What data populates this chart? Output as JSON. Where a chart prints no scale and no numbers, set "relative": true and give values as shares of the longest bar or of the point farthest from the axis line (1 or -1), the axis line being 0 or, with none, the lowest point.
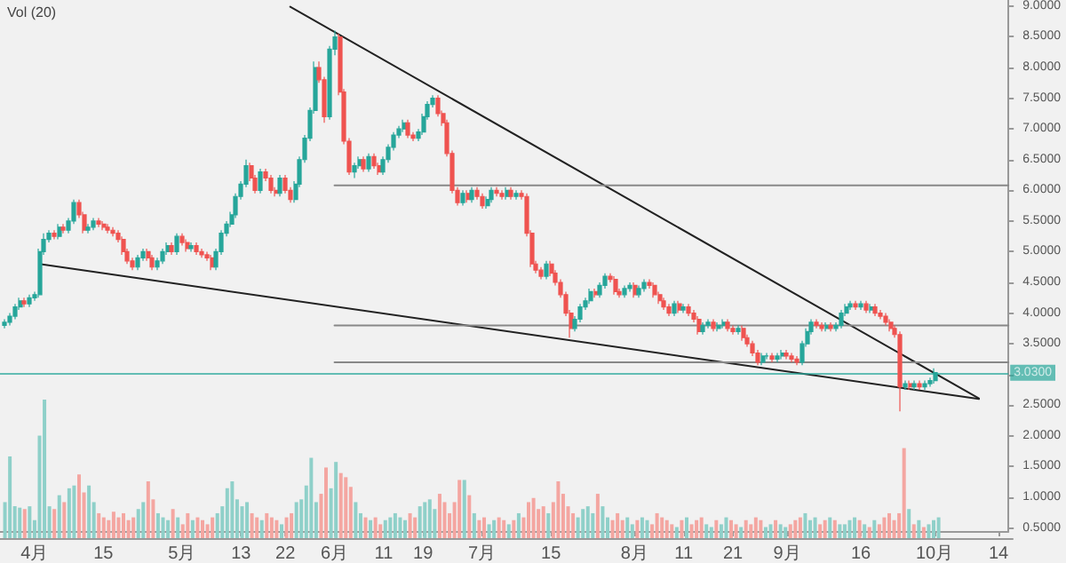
{
  "chart_data": [
    {
      "type": "candlestick",
      "annotations": [
        "Vol (20)"
      ],
      "xlim": [
        "--03-25",
        "--10-16"
      ],
      "ylim": [
        0.45,
        9.1
      ],
      "xticks": [
        {
          "value": "--04-01",
          "label": "4月"
        },
        {
          "value": "--04-15",
          "label": "15"
        },
        {
          "value": "--05-01",
          "label": "5月"
        },
        {
          "value": "--05-13",
          "label": "13"
        },
        {
          "value": "--05-22",
          "label": "22"
        },
        {
          "value": "--06-01",
          "label": "6月"
        },
        {
          "value": "--06-11",
          "label": "11"
        },
        {
          "value": "--06-19",
          "label": "19"
        },
        {
          "value": "--07-01",
          "label": "7月"
        },
        {
          "value": "--07-15",
          "label": "15"
        },
        {
          "value": "--08-01",
          "label": "8月"
        },
        {
          "value": "--08-11",
          "label": "11"
        },
        {
          "value": "--08-21",
          "label": "21"
        },
        {
          "value": "--09-01",
          "label": "9月"
        },
        {
          "value": "--09-16",
          "label": "16"
        },
        {
          "value": "--10-01",
          "label": "10月"
        },
        {
          "value": "--10-14",
          "label": "14"
        }
      ],
      "yticks": [
        {
          "value": 0.5,
          "label": "0.5000"
        },
        {
          "value": 1,
          "label": "1.0000"
        },
        {
          "value": 1.5,
          "label": "1.5000"
        },
        {
          "value": 2,
          "label": "2.0000"
        },
        {
          "value": 2.5,
          "label": "2.5000"
        },
        {
          "value": 3,
          "label": null
        },
        {
          "value": 3.5,
          "label": "3.5000"
        },
        {
          "value": 4,
          "label": "4.0000"
        },
        {
          "value": 4.5,
          "label": "4.5000"
        },
        {
          "value": 5,
          "label": "5.0000"
        },
        {
          "value": 5.5,
          "label": "5.5000"
        },
        {
          "value": 6,
          "label": "6.0000"
        },
        {
          "value": 6.5,
          "label": "6.5000"
        },
        {
          "value": 7,
          "label": "7.0000"
        },
        {
          "value": 7.5,
          "label": "7.5000"
        },
        {
          "value": 8,
          "label": "8.0000"
        },
        {
          "value": 8.5,
          "label": "8.5000"
        },
        {
          "value": 9,
          "label": "9.0000"
        }
      ],
      "ref_lines": [
        {
          "axis": "y",
          "value": 3.03,
          "label": "3.0300",
          "color": "#26a69a"
        }
      ],
      "x": [
        "--03-26",
        "--03-27",
        "--03-28",
        "--03-29",
        "--03-30",
        "--03-31",
        "--04-01",
        "--04-02",
        "--04-03",
        "--04-04",
        "--04-05",
        "--04-06",
        "--04-07",
        "--04-08",
        "--04-09",
        "--04-10",
        "--04-11",
        "--04-12",
        "--04-13",
        "--04-14",
        "--04-15",
        "--04-16",
        "--04-17",
        "--04-18",
        "--04-19",
        "--04-20",
        "--04-21",
        "--04-22",
        "--04-23",
        "--04-24",
        "--04-25",
        "--04-26",
        "--04-27",
        "--04-28",
        "--04-29",
        "--04-30",
        "--05-01",
        "--05-02",
        "--05-03",
        "--05-04",
        "--05-05",
        "--05-06",
        "--05-07",
        "--05-08",
        "--05-09",
        "--05-10",
        "--05-11",
        "--05-12",
        "--05-13",
        "--05-14",
        "--05-15",
        "--05-16",
        "--05-17",
        "--05-18",
        "--05-19",
        "--05-20",
        "--05-21",
        "--05-22",
        "--05-23",
        "--05-24",
        "--05-25",
        "--05-26",
        "--05-27",
        "--05-28",
        "--05-29",
        "--05-30",
        "--05-31",
        "--06-01",
        "--06-02",
        "--06-03",
        "--06-04",
        "--06-05",
        "--06-06",
        "--06-07",
        "--06-08",
        "--06-09",
        "--06-10",
        "--06-11",
        "--06-12",
        "--06-13",
        "--06-14",
        "--06-15",
        "--06-16",
        "--06-17",
        "--06-18",
        "--06-19",
        "--06-20",
        "--06-21",
        "--06-22",
        "--06-23",
        "--06-24",
        "--06-25",
        "--06-26",
        "--06-27",
        "--06-28",
        "--06-29",
        "--06-30",
        "--07-01",
        "--07-02",
        "--07-03",
        "--07-04",
        "--07-05",
        "--07-06",
        "--07-07",
        "--07-08",
        "--07-09",
        "--07-10",
        "--07-11",
        "--07-12",
        "--07-13",
        "--07-14",
        "--07-15",
        "--07-16",
        "--07-17",
        "--07-18",
        "--07-19",
        "--07-20",
        "--07-21",
        "--07-22",
        "--07-23",
        "--07-24",
        "--07-25",
        "--07-26",
        "--07-27",
        "--07-28",
        "--07-29",
        "--07-30",
        "--07-31",
        "--08-01",
        "--08-02",
        "--08-03",
        "--08-04",
        "--08-05",
        "--08-06",
        "--08-07",
        "--08-08",
        "--08-09",
        "--08-10",
        "--08-11",
        "--08-12",
        "--08-13",
        "--08-14",
        "--08-15",
        "--08-16",
        "--08-17",
        "--08-18",
        "--08-19",
        "--08-20",
        "--08-21",
        "--08-22",
        "--08-23",
        "--08-24",
        "--08-25",
        "--08-26",
        "--08-27",
        "--08-28",
        "--08-29",
        "--08-30",
        "--08-31",
        "--09-01",
        "--09-02",
        "--09-03",
        "--09-04",
        "--09-05",
        "--09-06",
        "--09-07",
        "--09-08",
        "--09-09",
        "--09-10",
        "--09-11",
        "--09-12",
        "--09-13",
        "--09-14",
        "--09-15",
        "--09-16",
        "--09-17",
        "--09-18",
        "--09-19",
        "--09-20",
        "--09-21",
        "--09-22",
        "--09-23",
        "--09-24",
        "--09-25",
        "--09-26",
        "--09-27",
        "--09-28",
        "--09-29",
        "--09-30",
        "--10-01"
      ],
      "ohlc": [
        [
          3.8,
          3.9,
          3.75,
          3.85
        ],
        [
          3.85,
          4.0,
          3.8,
          3.95
        ],
        [
          3.95,
          4.15,
          3.9,
          4.1
        ],
        [
          4.1,
          4.25,
          4.05,
          4.2
        ],
        [
          4.2,
          4.25,
          4.1,
          4.15
        ],
        [
          4.15,
          4.3,
          4.1,
          4.25
        ],
        [
          4.25,
          4.35,
          4.2,
          4.3
        ],
        [
          4.3,
          5.05,
          4.25,
          5.0
        ],
        [
          5.0,
          5.3,
          4.95,
          5.2
        ],
        [
          5.2,
          5.35,
          5.15,
          5.3
        ],
        [
          5.3,
          5.35,
          5.2,
          5.25
        ],
        [
          5.25,
          5.45,
          5.2,
          5.4
        ],
        [
          5.4,
          5.45,
          5.3,
          5.35
        ],
        [
          5.35,
          5.55,
          5.3,
          5.5
        ],
        [
          5.5,
          5.85,
          5.45,
          5.8
        ],
        [
          5.8,
          5.85,
          5.55,
          5.6
        ],
        [
          5.6,
          5.65,
          5.3,
          5.35
        ],
        [
          5.35,
          5.45,
          5.3,
          5.4
        ],
        [
          5.4,
          5.55,
          5.35,
          5.5
        ],
        [
          5.5,
          5.55,
          5.4,
          5.45
        ],
        [
          5.45,
          5.5,
          5.35,
          5.4
        ],
        [
          5.4,
          5.45,
          5.3,
          5.35
        ],
        [
          5.35,
          5.4,
          5.25,
          5.3
        ],
        [
          5.3,
          5.35,
          5.15,
          5.2
        ],
        [
          5.2,
          5.25,
          4.95,
          5.0
        ],
        [
          5.0,
          5.05,
          4.8,
          4.85
        ],
        [
          4.85,
          4.9,
          4.7,
          4.75
        ],
        [
          4.75,
          4.95,
          4.7,
          4.9
        ],
        [
          4.9,
          5.05,
          4.85,
          5.0
        ],
        [
          5.0,
          5.05,
          4.85,
          4.9
        ],
        [
          4.9,
          4.95,
          4.7,
          4.75
        ],
        [
          4.75,
          4.9,
          4.7,
          4.85
        ],
        [
          4.85,
          5.05,
          4.8,
          5.0
        ],
        [
          5.0,
          5.15,
          4.95,
          5.1
        ],
        [
          5.1,
          5.15,
          4.95,
          5.0
        ],
        [
          5.0,
          5.3,
          4.95,
          5.25
        ],
        [
          5.25,
          5.3,
          5.1,
          5.15
        ],
        [
          5.15,
          5.2,
          5.0,
          5.05
        ],
        [
          5.05,
          5.15,
          5.0,
          5.1
        ],
        [
          5.1,
          5.15,
          4.95,
          5.0
        ],
        [
          5.0,
          5.05,
          4.9,
          4.95
        ],
        [
          4.95,
          5.0,
          4.85,
          4.9
        ],
        [
          4.9,
          4.95,
          4.7,
          4.75
        ],
        [
          4.75,
          5.05,
          4.7,
          5.0
        ],
        [
          5.0,
          5.35,
          4.95,
          5.3
        ],
        [
          5.3,
          5.5,
          5.25,
          5.45
        ],
        [
          5.45,
          5.65,
          5.4,
          5.6
        ],
        [
          5.6,
          5.95,
          5.55,
          5.9
        ],
        [
          5.9,
          6.15,
          5.85,
          6.1
        ],
        [
          6.1,
          6.5,
          6.05,
          6.4
        ],
        [
          6.4,
          6.45,
          6.15,
          6.2
        ],
        [
          6.2,
          6.25,
          5.95,
          6.0
        ],
        [
          6.0,
          6.35,
          5.95,
          6.3
        ],
        [
          6.3,
          6.35,
          6.15,
          6.2
        ],
        [
          6.2,
          6.25,
          5.95,
          6.0
        ],
        [
          6.0,
          6.05,
          5.9,
          5.95
        ],
        [
          5.95,
          6.25,
          5.9,
          6.2
        ],
        [
          6.2,
          6.25,
          5.95,
          6.0
        ],
        [
          6.0,
          6.05,
          5.8,
          5.85
        ],
        [
          5.85,
          6.15,
          5.8,
          6.1
        ],
        [
          6.1,
          6.55,
          6.05,
          6.5
        ],
        [
          6.5,
          6.9,
          6.45,
          6.85
        ],
        [
          6.85,
          7.35,
          6.8,
          7.3
        ],
        [
          7.3,
          8.1,
          7.25,
          8.0
        ],
        [
          8.0,
          8.1,
          7.75,
          7.8
        ],
        [
          7.8,
          7.85,
          7.1,
          7.2
        ],
        [
          7.2,
          8.35,
          7.15,
          8.3
        ],
        [
          8.3,
          8.6,
          8.2,
          8.5
        ],
        [
          8.5,
          8.55,
          7.55,
          7.6
        ],
        [
          7.6,
          7.65,
          6.75,
          6.8
        ],
        [
          6.8,
          6.85,
          6.25,
          6.3
        ],
        [
          6.3,
          6.45,
          6.2,
          6.4
        ],
        [
          6.4,
          6.55,
          6.35,
          6.5
        ],
        [
          6.5,
          6.55,
          6.3,
          6.35
        ],
        [
          6.35,
          6.6,
          6.3,
          6.55
        ],
        [
          6.55,
          6.6,
          6.35,
          6.4
        ],
        [
          6.4,
          6.45,
          6.25,
          6.3
        ],
        [
          6.3,
          6.55,
          6.25,
          6.5
        ],
        [
          6.5,
          6.75,
          6.45,
          6.7
        ],
        [
          6.7,
          6.95,
          6.65,
          6.9
        ],
        [
          6.9,
          7.05,
          6.85,
          7.0
        ],
        [
          7.0,
          7.15,
          6.95,
          7.1
        ],
        [
          7.1,
          7.15,
          6.85,
          6.9
        ],
        [
          6.9,
          6.95,
          6.8,
          6.85
        ],
        [
          6.85,
          7.0,
          6.8,
          6.95
        ],
        [
          6.95,
          7.25,
          6.9,
          7.2
        ],
        [
          7.2,
          7.45,
          7.15,
          7.4
        ],
        [
          7.4,
          7.55,
          7.35,
          7.5
        ],
        [
          7.5,
          7.55,
          7.2,
          7.25
        ],
        [
          7.25,
          7.3,
          7.05,
          7.1
        ],
        [
          7.1,
          7.15,
          6.55,
          6.6
        ],
        [
          6.6,
          6.65,
          5.95,
          6.0
        ],
        [
          6.0,
          6.05,
          5.75,
          5.8
        ],
        [
          5.8,
          6.0,
          5.75,
          5.95
        ],
        [
          5.95,
          6.0,
          5.8,
          5.85
        ],
        [
          5.85,
          6.05,
          5.8,
          6.0
        ],
        [
          6.0,
          6.05,
          5.85,
          5.9
        ],
        [
          5.9,
          5.95,
          5.7,
          5.75
        ],
        [
          5.75,
          5.9,
          5.7,
          5.85
        ],
        [
          5.85,
          6.05,
          5.8,
          6.0
        ],
        [
          6.0,
          6.05,
          5.9,
          5.95
        ],
        [
          5.95,
          6.0,
          5.85,
          5.9
        ],
        [
          5.9,
          6.05,
          5.85,
          6.0
        ],
        [
          6.0,
          6.05,
          5.85,
          5.9
        ],
        [
          5.9,
          6.0,
          5.85,
          5.95
        ],
        [
          5.95,
          6.0,
          5.85,
          5.9
        ],
        [
          5.9,
          5.95,
          5.25,
          5.3
        ],
        [
          5.3,
          5.35,
          4.75,
          4.8
        ],
        [
          4.8,
          4.85,
          4.65,
          4.7
        ],
        [
          4.7,
          4.75,
          4.55,
          4.6
        ],
        [
          4.6,
          4.85,
          4.55,
          4.8
        ],
        [
          4.8,
          4.85,
          4.6,
          4.65
        ],
        [
          4.65,
          4.7,
          4.45,
          4.5
        ],
        [
          4.5,
          4.55,
          4.25,
          4.3
        ],
        [
          4.3,
          4.35,
          3.95,
          4.0
        ],
        [
          4.0,
          4.05,
          3.6,
          3.75
        ],
        [
          3.75,
          3.95,
          3.7,
          3.9
        ],
        [
          3.9,
          4.15,
          3.85,
          4.1
        ],
        [
          4.1,
          4.25,
          4.05,
          4.2
        ],
        [
          4.2,
          4.4,
          4.15,
          4.35
        ],
        [
          4.35,
          4.4,
          4.25,
          4.3
        ],
        [
          4.3,
          4.5,
          4.25,
          4.45
        ],
        [
          4.45,
          4.65,
          4.4,
          4.6
        ],
        [
          4.6,
          4.65,
          4.5,
          4.55
        ],
        [
          4.55,
          4.6,
          4.3,
          4.35
        ],
        [
          4.35,
          4.4,
          4.25,
          4.3
        ],
        [
          4.3,
          4.45,
          4.25,
          4.4
        ],
        [
          4.4,
          4.5,
          4.35,
          4.45
        ],
        [
          4.45,
          4.5,
          4.25,
          4.3
        ],
        [
          4.3,
          4.45,
          4.25,
          4.4
        ],
        [
          4.4,
          4.55,
          4.35,
          4.5
        ],
        [
          4.5,
          4.55,
          4.4,
          4.45
        ],
        [
          4.45,
          4.5,
          4.25,
          4.3
        ],
        [
          4.3,
          4.35,
          4.15,
          4.2
        ],
        [
          4.2,
          4.25,
          4.05,
          4.1
        ],
        [
          4.1,
          4.15,
          3.95,
          4.0
        ],
        [
          4.0,
          4.2,
          3.95,
          4.15
        ],
        [
          4.15,
          4.2,
          4.0,
          4.05
        ],
        [
          4.05,
          4.15,
          4.0,
          4.1
        ],
        [
          4.1,
          4.15,
          3.95,
          4.0
        ],
        [
          4.0,
          4.05,
          3.85,
          3.9
        ],
        [
          3.9,
          3.95,
          3.65,
          3.7
        ],
        [
          3.7,
          3.85,
          3.65,
          3.8
        ],
        [
          3.8,
          3.9,
          3.75,
          3.85
        ],
        [
          3.85,
          3.9,
          3.7,
          3.75
        ],
        [
          3.75,
          3.85,
          3.7,
          3.8
        ],
        [
          3.8,
          3.9,
          3.75,
          3.85
        ],
        [
          3.85,
          3.9,
          3.7,
          3.75
        ],
        [
          3.75,
          3.8,
          3.65,
          3.7
        ],
        [
          3.7,
          3.8,
          3.65,
          3.75
        ],
        [
          3.75,
          3.8,
          3.55,
          3.6
        ],
        [
          3.6,
          3.65,
          3.45,
          3.5
        ],
        [
          3.5,
          3.55,
          3.3,
          3.35
        ],
        [
          3.35,
          3.4,
          3.15,
          3.2
        ],
        [
          3.2,
          3.35,
          3.15,
          3.3
        ],
        [
          3.3,
          3.35,
          3.25,
          3.3
        ],
        [
          3.3,
          3.35,
          3.2,
          3.25
        ],
        [
          3.25,
          3.35,
          3.2,
          3.3
        ],
        [
          3.3,
          3.4,
          3.25,
          3.35
        ],
        [
          3.35,
          3.4,
          3.25,
          3.3
        ],
        [
          3.3,
          3.35,
          3.2,
          3.25
        ],
        [
          3.25,
          3.3,
          3.15,
          3.2
        ],
        [
          3.2,
          3.55,
          3.15,
          3.5
        ],
        [
          3.5,
          3.75,
          3.45,
          3.7
        ],
        [
          3.7,
          3.9,
          3.65,
          3.85
        ],
        [
          3.85,
          3.9,
          3.75,
          3.8
        ],
        [
          3.8,
          3.85,
          3.7,
          3.75
        ],
        [
          3.75,
          3.85,
          3.7,
          3.8
        ],
        [
          3.8,
          3.85,
          3.7,
          3.75
        ],
        [
          3.75,
          3.85,
          3.7,
          3.8
        ],
        [
          3.8,
          4.05,
          3.75,
          4.0
        ],
        [
          4.0,
          4.15,
          3.95,
          4.1
        ],
        [
          4.1,
          4.2,
          4.05,
          4.15
        ],
        [
          4.15,
          4.2,
          4.05,
          4.1
        ],
        [
          4.1,
          4.2,
          4.05,
          4.15
        ],
        [
          4.15,
          4.2,
          4.0,
          4.05
        ],
        [
          4.05,
          4.15,
          4.0,
          4.1
        ],
        [
          4.1,
          4.15,
          3.95,
          4.0
        ],
        [
          4.0,
          4.05,
          3.9,
          3.95
        ],
        [
          3.95,
          4.0,
          3.8,
          3.85
        ],
        [
          3.85,
          3.9,
          3.7,
          3.75
        ],
        [
          3.75,
          3.8,
          3.6,
          3.65
        ],
        [
          3.65,
          3.7,
          2.4,
          2.8
        ],
        [
          2.8,
          2.9,
          2.75,
          2.85
        ],
        [
          2.85,
          2.9,
          2.75,
          2.8
        ],
        [
          2.8,
          2.9,
          2.75,
          2.85
        ],
        [
          2.85,
          2.9,
          2.75,
          2.8
        ],
        [
          2.8,
          2.9,
          2.75,
          2.85
        ],
        [
          2.85,
          2.95,
          2.8,
          2.9
        ],
        [
          2.9,
          3.1,
          2.85,
          3.03
        ]
      ],
      "colors": [
        "#26a69a",
        "#26a69a",
        "#26a69a",
        "#26a69a",
        "#ef5350",
        "#26a69a",
        "#26a69a",
        "#26a69a",
        "#26a69a",
        "#26a69a",
        "#ef5350",
        "#26a69a",
        "#ef5350",
        "#26a69a",
        "#26a69a",
        "#ef5350",
        "#ef5350",
        "#26a69a",
        "#26a69a",
        "#ef5350",
        "#ef5350",
        "#ef5350",
        "#ef5350",
        "#ef5350",
        "#ef5350",
        "#ef5350",
        "#ef5350",
        "#26a69a",
        "#26a69a",
        "#ef5350",
        "#ef5350",
        "#26a69a",
        "#26a69a",
        "#26a69a",
        "#ef5350",
        "#26a69a",
        "#ef5350",
        "#ef5350",
        "#26a69a",
        "#ef5350",
        "#ef5350",
        "#ef5350",
        "#ef5350",
        "#26a69a",
        "#26a69a",
        "#26a69a",
        "#26a69a",
        "#26a69a",
        "#26a69a",
        "#26a69a",
        "#ef5350",
        "#ef5350",
        "#26a69a",
        "#ef5350",
        "#ef5350",
        "#ef5350",
        "#26a69a",
        "#ef5350",
        "#ef5350",
        "#26a69a",
        "#26a69a",
        "#26a69a",
        "#26a69a",
        "#26a69a",
        "#ef5350",
        "#ef5350",
        "#26a69a",
        "#26a69a",
        "#ef5350",
        "#ef5350",
        "#ef5350",
        "#26a69a",
        "#26a69a",
        "#ef5350",
        "#26a69a",
        "#ef5350",
        "#ef5350",
        "#26a69a",
        "#26a69a",
        "#26a69a",
        "#26a69a",
        "#26a69a",
        "#ef5350",
        "#ef5350",
        "#26a69a",
        "#26a69a",
        "#26a69a",
        "#26a69a",
        "#ef5350",
        "#ef5350",
        "#ef5350",
        "#ef5350",
        "#ef5350",
        "#26a69a",
        "#ef5350",
        "#26a69a",
        "#ef5350",
        "#ef5350",
        "#26a69a",
        "#26a69a",
        "#ef5350",
        "#ef5350",
        "#26a69a",
        "#ef5350",
        "#26a69a",
        "#ef5350",
        "#ef5350",
        "#ef5350",
        "#ef5350",
        "#ef5350",
        "#26a69a",
        "#ef5350",
        "#ef5350",
        "#ef5350",
        "#ef5350",
        "#ef5350",
        "#26a69a",
        "#26a69a",
        "#26a69a",
        "#26a69a",
        "#ef5350",
        "#26a69a",
        "#26a69a",
        "#ef5350",
        "#ef5350",
        "#ef5350",
        "#26a69a",
        "#26a69a",
        "#ef5350",
        "#26a69a",
        "#26a69a",
        "#ef5350",
        "#ef5350",
        "#ef5350",
        "#ef5350",
        "#ef5350",
        "#26a69a",
        "#ef5350",
        "#26a69a",
        "#ef5350",
        "#ef5350",
        "#ef5350",
        "#26a69a",
        "#26a69a",
        "#ef5350",
        "#26a69a",
        "#26a69a",
        "#ef5350",
        "#ef5350",
        "#26a69a",
        "#ef5350",
        "#ef5350",
        "#ef5350",
        "#ef5350",
        "#26a69a",
        "#26a69a",
        "#ef5350",
        "#26a69a",
        "#26a69a",
        "#ef5350",
        "#ef5350",
        "#ef5350",
        "#26a69a",
        "#26a69a",
        "#26a69a",
        "#ef5350",
        "#ef5350",
        "#26a69a",
        "#ef5350",
        "#26a69a",
        "#26a69a",
        "#26a69a",
        "#26a69a",
        "#ef5350",
        "#26a69a",
        "#ef5350",
        "#26a69a",
        "#ef5350",
        "#ef5350",
        "#ef5350",
        "#ef5350",
        "#ef5350",
        "#ef5350",
        "#26a69a",
        "#ef5350",
        "#26a69a",
        "#ef5350",
        "#26a69a",
        "#26a69a",
        "#26a69a"
      ],
      "series": [
        {
          "type": "line",
          "color": "#222222",
          "x": [
            "--05-23",
            "--10-10"
          ],
          "values": [
            8.99,
            2.61
          ]
        },
        {
          "type": "line",
          "color": "#222222",
          "x": [
            "--04-02",
            "--10-10"
          ],
          "values": [
            4.8,
            2.6
          ]
        },
        {
          "type": "line",
          "color": "#888888",
          "x": [
            "--06-01",
            "--10-16"
          ],
          "values": [
            6.08,
            6.08
          ]
        },
        {
          "type": "line",
          "color": "#888888",
          "x": [
            "--06-01",
            "--10-16"
          ],
          "values": [
            3.8,
            3.8
          ]
        },
        {
          "type": "line",
          "color": "#888888",
          "x": [
            "--06-01",
            "--10-16"
          ],
          "values": [
            3.2,
            3.2
          ]
        }
      ]
    },
    {
      "type": "bar",
      "relative": true,
      "xlim": [
        "--03-25",
        "--10-16"
      ],
      "x": [
        "--03-26",
        "--03-27",
        "--03-28",
        "--03-29",
        "--03-30",
        "--03-31",
        "--04-01",
        "--04-02",
        "--04-03",
        "--04-04",
        "--04-05",
        "--04-06",
        "--04-07",
        "--04-08",
        "--04-09",
        "--04-10",
        "--04-11",
        "--04-12",
        "--04-13",
        "--04-14",
        "--04-15",
        "--04-16",
        "--04-17",
        "--04-18",
        "--04-19",
        "--04-20",
        "--04-21",
        "--04-22",
        "--04-23",
        "--04-24",
        "--04-25",
        "--04-26",
        "--04-27",
        "--04-28",
        "--04-29",
        "--04-30",
        "--05-01",
        "--05-02",
        "--05-03",
        "--05-04",
        "--05-05",
        "--05-06",
        "--05-07",
        "--05-08",
        "--05-09",
        "--05-10",
        "--05-11",
        "--05-12",
        "--05-13",
        "--05-14",
        "--05-15",
        "--05-16",
        "--05-17",
        "--05-18",
        "--05-19",
        "--05-20",
        "--05-21",
        "--05-22",
        "--05-23",
        "--05-24",
        "--05-25",
        "--05-26",
        "--05-27",
        "--05-28",
        "--05-29",
        "--05-30",
        "--05-31",
        "--06-01",
        "--06-02",
        "--06-03",
        "--06-04",
        "--06-05",
        "--06-06",
        "--06-07",
        "--06-08",
        "--06-09",
        "--06-10",
        "--06-11",
        "--06-12",
        "--06-13",
        "--06-14",
        "--06-15",
        "--06-16",
        "--06-17",
        "--06-18",
        "--06-19",
        "--06-20",
        "--06-21",
        "--06-22",
        "--06-23",
        "--06-24",
        "--06-25",
        "--06-26",
        "--06-27",
        "--06-28",
        "--06-29",
        "--06-30",
        "--07-01",
        "--07-02",
        "--07-03",
        "--07-04",
        "--07-05",
        "--07-06",
        "--07-07",
        "--07-08",
        "--07-09",
        "--07-10",
        "--07-11",
        "--07-12",
        "--07-13",
        "--07-14",
        "--07-15",
        "--07-16",
        "--07-17",
        "--07-18",
        "--07-19",
        "--07-20",
        "--07-21",
        "--07-22",
        "--07-23",
        "--07-24",
        "--07-25",
        "--07-26",
        "--07-27",
        "--07-28",
        "--07-29",
        "--07-30",
        "--07-31",
        "--08-01",
        "--08-02",
        "--08-03",
        "--08-04",
        "--08-05",
        "--08-06",
        "--08-07",
        "--08-08",
        "--08-09",
        "--08-10",
        "--08-11",
        "--08-12",
        "--08-13",
        "--08-14",
        "--08-15",
        "--08-16",
        "--08-17",
        "--08-18",
        "--08-19",
        "--08-20",
        "--08-21",
        "--08-22",
        "--08-23",
        "--08-24",
        "--08-25",
        "--08-26",
        "--08-27",
        "--08-28",
        "--08-29",
        "--08-30",
        "--08-31",
        "--09-01",
        "--09-02",
        "--09-03",
        "--09-04",
        "--09-05",
        "--09-06",
        "--09-07",
        "--09-08",
        "--09-09",
        "--09-10",
        "--09-11",
        "--09-12",
        "--09-13",
        "--09-14",
        "--09-15",
        "--09-16",
        "--09-17",
        "--09-18",
        "--09-19",
        "--09-20",
        "--09-21",
        "--09-22",
        "--09-23",
        "--09-24",
        "--09-25",
        "--09-26",
        "--09-27",
        "--09-28",
        "--09-29",
        "--09-30",
        "--10-01"
      ],
      "values": [
        0.26,
        0.59,
        0.23,
        0.22,
        0.21,
        0.23,
        0.13,
        0.74,
        1,
        0.23,
        0.21,
        0.31,
        0.26,
        0.36,
        0.38,
        0.46,
        0.33,
        0.38,
        0.26,
        0.18,
        0.15,
        0.13,
        0.19,
        0.15,
        0.18,
        0.13,
        0.15,
        0.21,
        0.26,
        0.41,
        0.28,
        0.18,
        0.15,
        0.13,
        0.21,
        0.15,
        0.1,
        0.18,
        0.13,
        0.15,
        0.13,
        0.1,
        0.15,
        0.18,
        0.23,
        0.36,
        0.41,
        0.28,
        0.23,
        0.26,
        0.18,
        0.15,
        0.13,
        0.18,
        0.15,
        0.13,
        0.1,
        0.15,
        0.18,
        0.26,
        0.28,
        0.38,
        0.58,
        0.26,
        0.32,
        0.51,
        0.36,
        0.55,
        0.47,
        0.44,
        0.37,
        0.26,
        0.18,
        0.15,
        0.13,
        0.15,
        0.1,
        0.13,
        0.15,
        0.18,
        0.15,
        0.13,
        0.18,
        0.15,
        0.23,
        0.26,
        0.28,
        0.21,
        0.32,
        0.26,
        0.18,
        0.26,
        0.42,
        0.42,
        0.31,
        0.18,
        0.13,
        0.15,
        0.1,
        0.13,
        0.15,
        0.13,
        0.1,
        0.13,
        0.18,
        0.15,
        0.26,
        0.29,
        0.21,
        0.23,
        0.18,
        0.26,
        0.41,
        0.32,
        0.23,
        0.18,
        0.15,
        0.21,
        0.23,
        0.18,
        0.32,
        0.23,
        0.15,
        0.13,
        0.18,
        0.13,
        0.15,
        0.1,
        0.13,
        0.15,
        0.13,
        0.1,
        0.18,
        0.15,
        0.13,
        0.1,
        0.08,
        0.13,
        0.15,
        0.1,
        0.13,
        0.15,
        0.1,
        0.08,
        0.13,
        0.1,
        0.15,
        0.13,
        0.1,
        0.08,
        0.13,
        0.1,
        0.15,
        0.13,
        0.08,
        0.1,
        0.13,
        0.1,
        0.08,
        0.1,
        0.13,
        0.15,
        0.18,
        0.13,
        0.15,
        0.1,
        0.13,
        0.15,
        0.13,
        0.1,
        0.1,
        0.13,
        0.15,
        0.13,
        0.1,
        0.08,
        0.13,
        0.1,
        0.15,
        0.18,
        0.13,
        0.18,
        0.65,
        0.21,
        0.1,
        0.13,
        0.08,
        0.1,
        0.13,
        0.15
      ],
      "colors": [
        "#8fd0c9",
        "#8fd0c9",
        "#8fd0c9",
        "#8fd0c9",
        "#f4a6a1",
        "#8fd0c9",
        "#8fd0c9",
        "#8fd0c9",
        "#8fd0c9",
        "#8fd0c9",
        "#f4a6a1",
        "#8fd0c9",
        "#f4a6a1",
        "#8fd0c9",
        "#8fd0c9",
        "#f4a6a1",
        "#f4a6a1",
        "#8fd0c9",
        "#8fd0c9",
        "#f4a6a1",
        "#f4a6a1",
        "#f4a6a1",
        "#f4a6a1",
        "#f4a6a1",
        "#f4a6a1",
        "#f4a6a1",
        "#f4a6a1",
        "#8fd0c9",
        "#8fd0c9",
        "#f4a6a1",
        "#f4a6a1",
        "#8fd0c9",
        "#8fd0c9",
        "#8fd0c9",
        "#f4a6a1",
        "#8fd0c9",
        "#f4a6a1",
        "#f4a6a1",
        "#8fd0c9",
        "#f4a6a1",
        "#f4a6a1",
        "#f4a6a1",
        "#f4a6a1",
        "#8fd0c9",
        "#8fd0c9",
        "#8fd0c9",
        "#8fd0c9",
        "#8fd0c9",
        "#8fd0c9",
        "#8fd0c9",
        "#f4a6a1",
        "#f4a6a1",
        "#8fd0c9",
        "#f4a6a1",
        "#f4a6a1",
        "#f4a6a1",
        "#8fd0c9",
        "#f4a6a1",
        "#f4a6a1",
        "#8fd0c9",
        "#8fd0c9",
        "#8fd0c9",
        "#8fd0c9",
        "#8fd0c9",
        "#f4a6a1",
        "#f4a6a1",
        "#8fd0c9",
        "#8fd0c9",
        "#f4a6a1",
        "#f4a6a1",
        "#f4a6a1",
        "#8fd0c9",
        "#8fd0c9",
        "#f4a6a1",
        "#8fd0c9",
        "#f4a6a1",
        "#f4a6a1",
        "#8fd0c9",
        "#8fd0c9",
        "#8fd0c9",
        "#8fd0c9",
        "#8fd0c9",
        "#f4a6a1",
        "#f4a6a1",
        "#8fd0c9",
        "#8fd0c9",
        "#8fd0c9",
        "#8fd0c9",
        "#f4a6a1",
        "#f4a6a1",
        "#f4a6a1",
        "#f4a6a1",
        "#f4a6a1",
        "#8fd0c9",
        "#f4a6a1",
        "#8fd0c9",
        "#f4a6a1",
        "#f4a6a1",
        "#8fd0c9",
        "#8fd0c9",
        "#f4a6a1",
        "#f4a6a1",
        "#8fd0c9",
        "#f4a6a1",
        "#8fd0c9",
        "#f4a6a1",
        "#f4a6a1",
        "#f4a6a1",
        "#f4a6a1",
        "#f4a6a1",
        "#8fd0c9",
        "#f4a6a1",
        "#f4a6a1",
        "#f4a6a1",
        "#f4a6a1",
        "#f4a6a1",
        "#8fd0c9",
        "#8fd0c9",
        "#8fd0c9",
        "#8fd0c9",
        "#f4a6a1",
        "#8fd0c9",
        "#8fd0c9",
        "#f4a6a1",
        "#f4a6a1",
        "#f4a6a1",
        "#8fd0c9",
        "#8fd0c9",
        "#f4a6a1",
        "#8fd0c9",
        "#8fd0c9",
        "#f4a6a1",
        "#f4a6a1",
        "#f4a6a1",
        "#f4a6a1",
        "#f4a6a1",
        "#8fd0c9",
        "#f4a6a1",
        "#8fd0c9",
        "#f4a6a1",
        "#f4a6a1",
        "#f4a6a1",
        "#8fd0c9",
        "#8fd0c9",
        "#f4a6a1",
        "#8fd0c9",
        "#8fd0c9",
        "#f4a6a1",
        "#f4a6a1",
        "#8fd0c9",
        "#f4a6a1",
        "#f4a6a1",
        "#f4a6a1",
        "#f4a6a1",
        "#8fd0c9",
        "#8fd0c9",
        "#f4a6a1",
        "#8fd0c9",
        "#8fd0c9",
        "#f4a6a1",
        "#f4a6a1",
        "#f4a6a1",
        "#8fd0c9",
        "#8fd0c9",
        "#8fd0c9",
        "#f4a6a1",
        "#f4a6a1",
        "#8fd0c9",
        "#f4a6a1",
        "#8fd0c9",
        "#8fd0c9",
        "#8fd0c9",
        "#8fd0c9",
        "#f4a6a1",
        "#8fd0c9",
        "#f4a6a1",
        "#8fd0c9",
        "#f4a6a1",
        "#f4a6a1",
        "#f4a6a1",
        "#f4a6a1",
        "#f4a6a1",
        "#f4a6a1",
        "#8fd0c9",
        "#f4a6a1",
        "#8fd0c9",
        "#f4a6a1",
        "#8fd0c9",
        "#8fd0c9",
        "#8fd0c9"
      ]
    }
  ]
}
